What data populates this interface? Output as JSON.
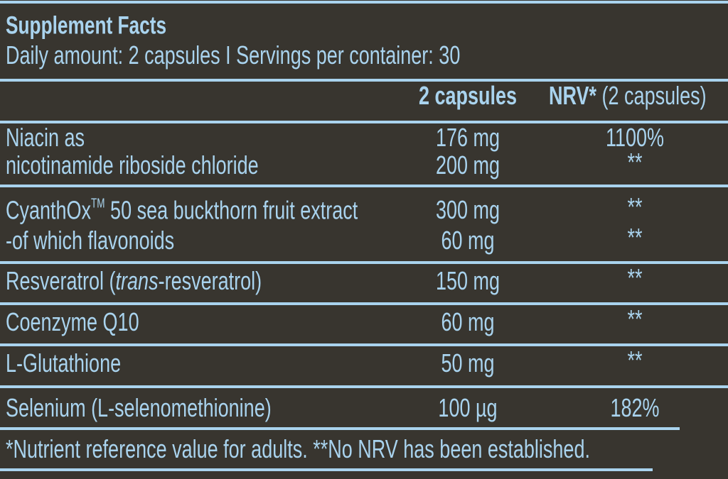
{
  "header": {
    "title": "Supplement Facts",
    "subtitle": "Daily amount: 2 capsules I Servings per container: 30"
  },
  "table": {
    "column_headers": {
      "amount": "2 capsules",
      "nrv": "NRV*",
      "nrv_note": "(2 capsules)"
    },
    "groups": [
      {
        "lines": [
          {
            "name_parts": [
              {
                "text": "Niacin as"
              }
            ],
            "amount": "176 mg",
            "nrv": "1100%"
          },
          {
            "name_parts": [
              {
                "text": "nicotinamide riboside chloride"
              }
            ],
            "amount": "200 mg",
            "nrv": "**"
          }
        ]
      },
      {
        "lines": [
          {
            "name_parts": [
              {
                "text": "CyanthOx"
              },
              {
                "text": "TM",
                "sup": true
              },
              {
                "text": " 50 sea buckthorn fruit extract"
              }
            ],
            "amount": "300 mg",
            "nrv": "**"
          },
          {
            "name_parts": [
              {
                "text": "-of which flavonoids"
              }
            ],
            "amount": "60 mg",
            "nrv": "**"
          }
        ]
      },
      {
        "lines": [
          {
            "name_parts": [
              {
                "text": "Resveratrol ("
              },
              {
                "text": "trans",
                "italic": true
              },
              {
                "text": "-resveratrol)"
              }
            ],
            "amount": "150 mg",
            "nrv": "**"
          }
        ]
      },
      {
        "lines": [
          {
            "name_parts": [
              {
                "text": "Coenzyme Q10"
              }
            ],
            "amount": "60 mg",
            "nrv": "**"
          }
        ]
      },
      {
        "lines": [
          {
            "name_parts": [
              {
                "text": "L-Glutathione"
              }
            ],
            "amount": "50 mg",
            "nrv": "**"
          }
        ]
      },
      {
        "lines": [
          {
            "name_parts": [
              {
                "text": "Selenium (L-selenomethionine)"
              }
            ],
            "amount": "100 µg",
            "nrv": "182%"
          }
        ]
      }
    ]
  },
  "footnote": "*Nutrient reference value for adults. **No NRV has been established."
}
